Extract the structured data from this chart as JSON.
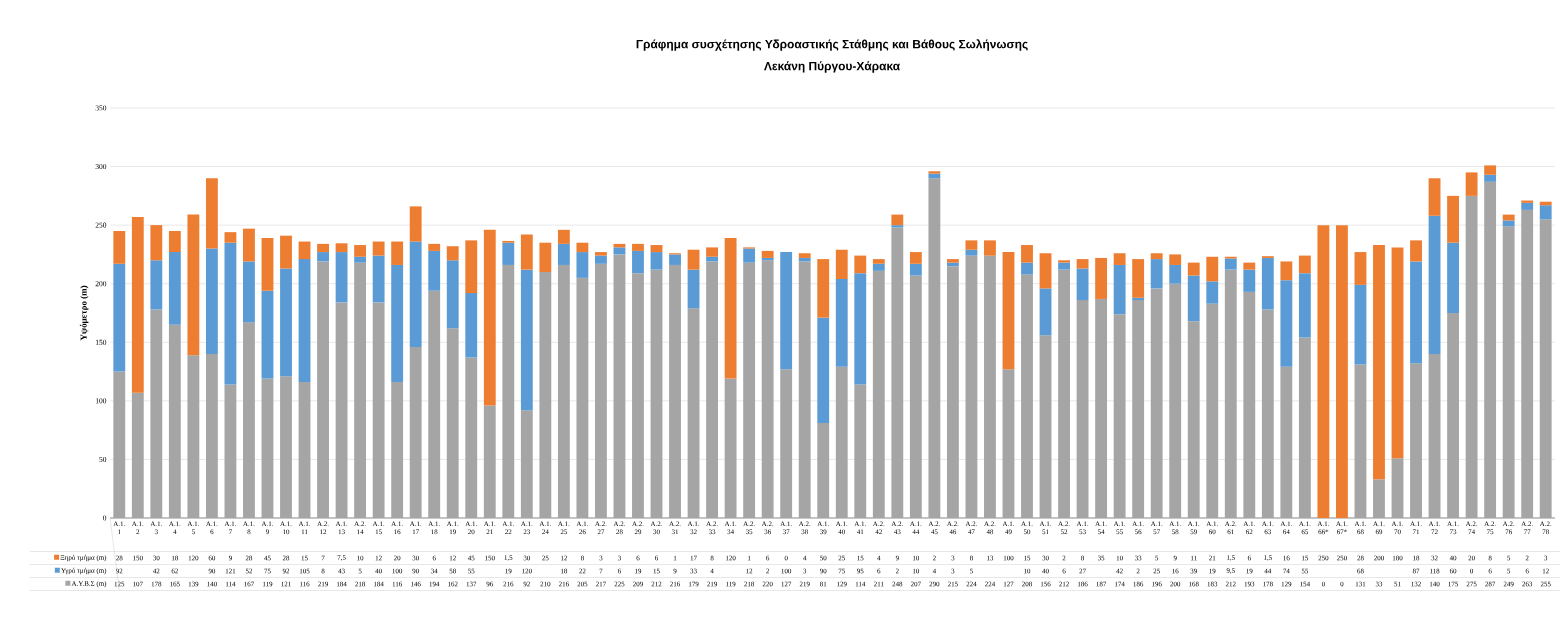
{
  "chart_data": {
    "type": "bar",
    "stacked": true,
    "title": "Γράφημα  συσχέτησης Υδροαστικής Στάθμης και Βάθους Σωλήνωσης",
    "subtitle": "Λεκάνη Πύργου-Χάρακα",
    "ylabel": "Υψόμετρο (m)",
    "categories": [
      "Α.1. 1",
      "Α.1. 2",
      "Α.1. 3",
      "Α.1. 4",
      "Α.1. 5",
      "Α.1. 6",
      "Α.1. 7",
      "Α.1. 8",
      "Α.1. 9",
      "Α.1. 10",
      "Α.1. 11",
      "Α.2. 12",
      "Α.1. 13",
      "Α.2. 14",
      "Α.1. 15",
      "Α.1. 16",
      "Α.1. 17",
      "Α.1. 18",
      "Α.1. 19",
      "Α.1. 20",
      "Α.1. 21",
      "Α.1. 22",
      "Α.1. 23",
      "Α.1. 24",
      "Α.1. 25",
      "Α.1. 26",
      "Α.2. 27",
      "Α.2. 28",
      "Α.2. 29",
      "Α.2. 30",
      "Α.2. 31",
      "Α.1. 32",
      "Α.2. 33",
      "Α.1. 34",
      "Α.2. 35",
      "Α.2. 36",
      "Α.1. 37",
      "Α.2. 38",
      "Α.1. 39",
      "Α.1. 40",
      "Α.1. 41",
      "Α.2. 42",
      "Α.2. 43",
      "Α.1. 44",
      "Α.2. 45",
      "Α.2. 46",
      "Α.2. 47",
      "Α.2. 48",
      "Α.1. 49",
      "Α.1. 50",
      "Α.1. 51",
      "Α.2. 52",
      "Α.1. 53",
      "Α.1. 54",
      "Α.1. 55",
      "Α.1. 56",
      "Α.1. 57",
      "Α.1. 58",
      "Α.1. 59",
      "Α.1. 60",
      "Α.2. 61",
      "Α.1. 62",
      "Α.1. 63",
      "Α.1. 64",
      "Α.1. 65",
      "Α.1. 66*",
      "Α.1. 67*",
      "Α.1. 68",
      "Α.1. 69",
      "Α.1. 70",
      "Α.1. 71",
      "Α.1. 72",
      "Α.1. 73",
      "Α.2. 74",
      "Α.2. 75",
      "Α.2. 76",
      "Α.2. 77",
      "Α.2. 78"
    ],
    "series": [
      {
        "name": "Α.Υ.Β.Σ (m)",
        "color": "#a5a5a5",
        "values": [
          125,
          107,
          178,
          165,
          139,
          140,
          114,
          167,
          119,
          121,
          116,
          219,
          184,
          218,
          184,
          116,
          146,
          194,
          162,
          137,
          96,
          216,
          92,
          210,
          216,
          205,
          217,
          225,
          209,
          212,
          216,
          179,
          219,
          119,
          218,
          220,
          127,
          219,
          81,
          129,
          114,
          211,
          248,
          207,
          290,
          215,
          224,
          224,
          127,
          208,
          156,
          212,
          186,
          187,
          174,
          186,
          196,
          200,
          168,
          183,
          212,
          193,
          178,
          129,
          154,
          0,
          0,
          131,
          33,
          51,
          132,
          140,
          175,
          275,
          287,
          249,
          263,
          255
        ],
        "value_labels": [
          "125",
          "107",
          "178",
          "165",
          "139",
          "140",
          "114",
          "167",
          "119",
          "121",
          "116",
          "219",
          "184",
          "218",
          "184",
          "116",
          "146",
          "194",
          "162",
          "137",
          "96",
          "216",
          "92",
          "210",
          "216",
          "205",
          "217",
          "225",
          "209",
          "212",
          "216",
          "179",
          "219",
          "119",
          "218",
          "220",
          "127",
          "219",
          "81",
          "129",
          "114",
          "211",
          "248",
          "207",
          "290",
          "215",
          "224",
          "224",
          "127",
          "208",
          "156",
          "212",
          "186",
          "187",
          "174",
          "186",
          "196",
          "200",
          "168",
          "183",
          "212",
          "193",
          "178",
          "129",
          "154",
          "0",
          "0",
          "131",
          "33",
          "51",
          "132",
          "140",
          "175",
          "275",
          "287",
          "249",
          "263",
          "255"
        ]
      },
      {
        "name": "Υγρό τμήμα (m)",
        "color": "#5b9bd5",
        "values": [
          92,
          null,
          42,
          62,
          null,
          90,
          121,
          52,
          75,
          92,
          105,
          8,
          43,
          5,
          40,
          100,
          90,
          34,
          58,
          55,
          null,
          19,
          120,
          null,
          18,
          22,
          7,
          6,
          19,
          15,
          9,
          33,
          4,
          null,
          12,
          2,
          100,
          3,
          90,
          75,
          95,
          6,
          2,
          10,
          4,
          3,
          5,
          null,
          null,
          10,
          40,
          6,
          27,
          null,
          42,
          2,
          25,
          16,
          39,
          19,
          9.5,
          19,
          44,
          74,
          55,
          null,
          null,
          68,
          null,
          null,
          87,
          118,
          60,
          0,
          6,
          5,
          6,
          12
        ],
        "value_labels": [
          "92",
          null,
          "42",
          "62",
          null,
          "90",
          "121",
          "52",
          "75",
          "92",
          "105",
          "8",
          "43",
          "5",
          "40",
          "100",
          "90",
          "34",
          "58",
          "55",
          null,
          "19",
          "120",
          null,
          "18",
          "22",
          "7",
          "6",
          "19",
          "15",
          "9",
          "33",
          "4",
          null,
          "12",
          "2",
          "100",
          "3",
          "90",
          "75",
          "95",
          "6",
          "2",
          "10",
          "4",
          "3",
          "5",
          null,
          null,
          "10",
          "40",
          "6",
          "27",
          null,
          "42",
          "2",
          "25",
          "16",
          "39",
          "19",
          "9,5",
          "19",
          "44",
          "74",
          "55",
          null,
          null,
          "68",
          null,
          null,
          "87",
          "118",
          "60",
          "0",
          "6",
          "5",
          "6",
          "12"
        ]
      },
      {
        "name": "Ξηρό τμήμα (m)",
        "color": "#ed7d31",
        "values": [
          28,
          150,
          30,
          18,
          120,
          60,
          9,
          28,
          45,
          28,
          15,
          7,
          7.5,
          10,
          12,
          20,
          30,
          6,
          12,
          45,
          150,
          1.5,
          30,
          25,
          12,
          8,
          3,
          3,
          6,
          6,
          1,
          17,
          8,
          120,
          1,
          6,
          0,
          4,
          50,
          25,
          15,
          4,
          9,
          10,
          2,
          3,
          8,
          13,
          100,
          15,
          30,
          2,
          8,
          35,
          10,
          33,
          5,
          9,
          11,
          21,
          1.5,
          6,
          1.5,
          16,
          15,
          250,
          250,
          28,
          200,
          180,
          18,
          32,
          40,
          20,
          8,
          5,
          2,
          3
        ],
        "value_labels": [
          "28",
          "150",
          "30",
          "18",
          "120",
          "60",
          "9",
          "28",
          "45",
          "28",
          "15",
          "7",
          "7,5",
          "10",
          "12",
          "20",
          "30",
          "6",
          "12",
          "45",
          "150",
          "1,5",
          "30",
          "25",
          "12",
          "8",
          "3",
          "3",
          "6",
          "6",
          "1",
          "17",
          "8",
          "120",
          "1",
          "6",
          "0",
          "4",
          "50",
          "25",
          "15",
          "4",
          "9",
          "10",
          "2",
          "3",
          "8",
          "13",
          "100",
          "15",
          "30",
          "2",
          "8",
          "35",
          "10",
          "33",
          "5",
          "9",
          "11",
          "21",
          "1,5",
          "6",
          "1,5",
          "16",
          "15",
          "250",
          "250",
          "28",
          "200",
          "180",
          "18",
          "32",
          "40",
          "20",
          "8",
          "5",
          "2",
          "3"
        ]
      }
    ],
    "ylim": [
      0,
      350
    ],
    "yticks": [
      0,
      50,
      100,
      150,
      200,
      250,
      300,
      350
    ],
    "grid": "y",
    "legend": "bottom"
  }
}
